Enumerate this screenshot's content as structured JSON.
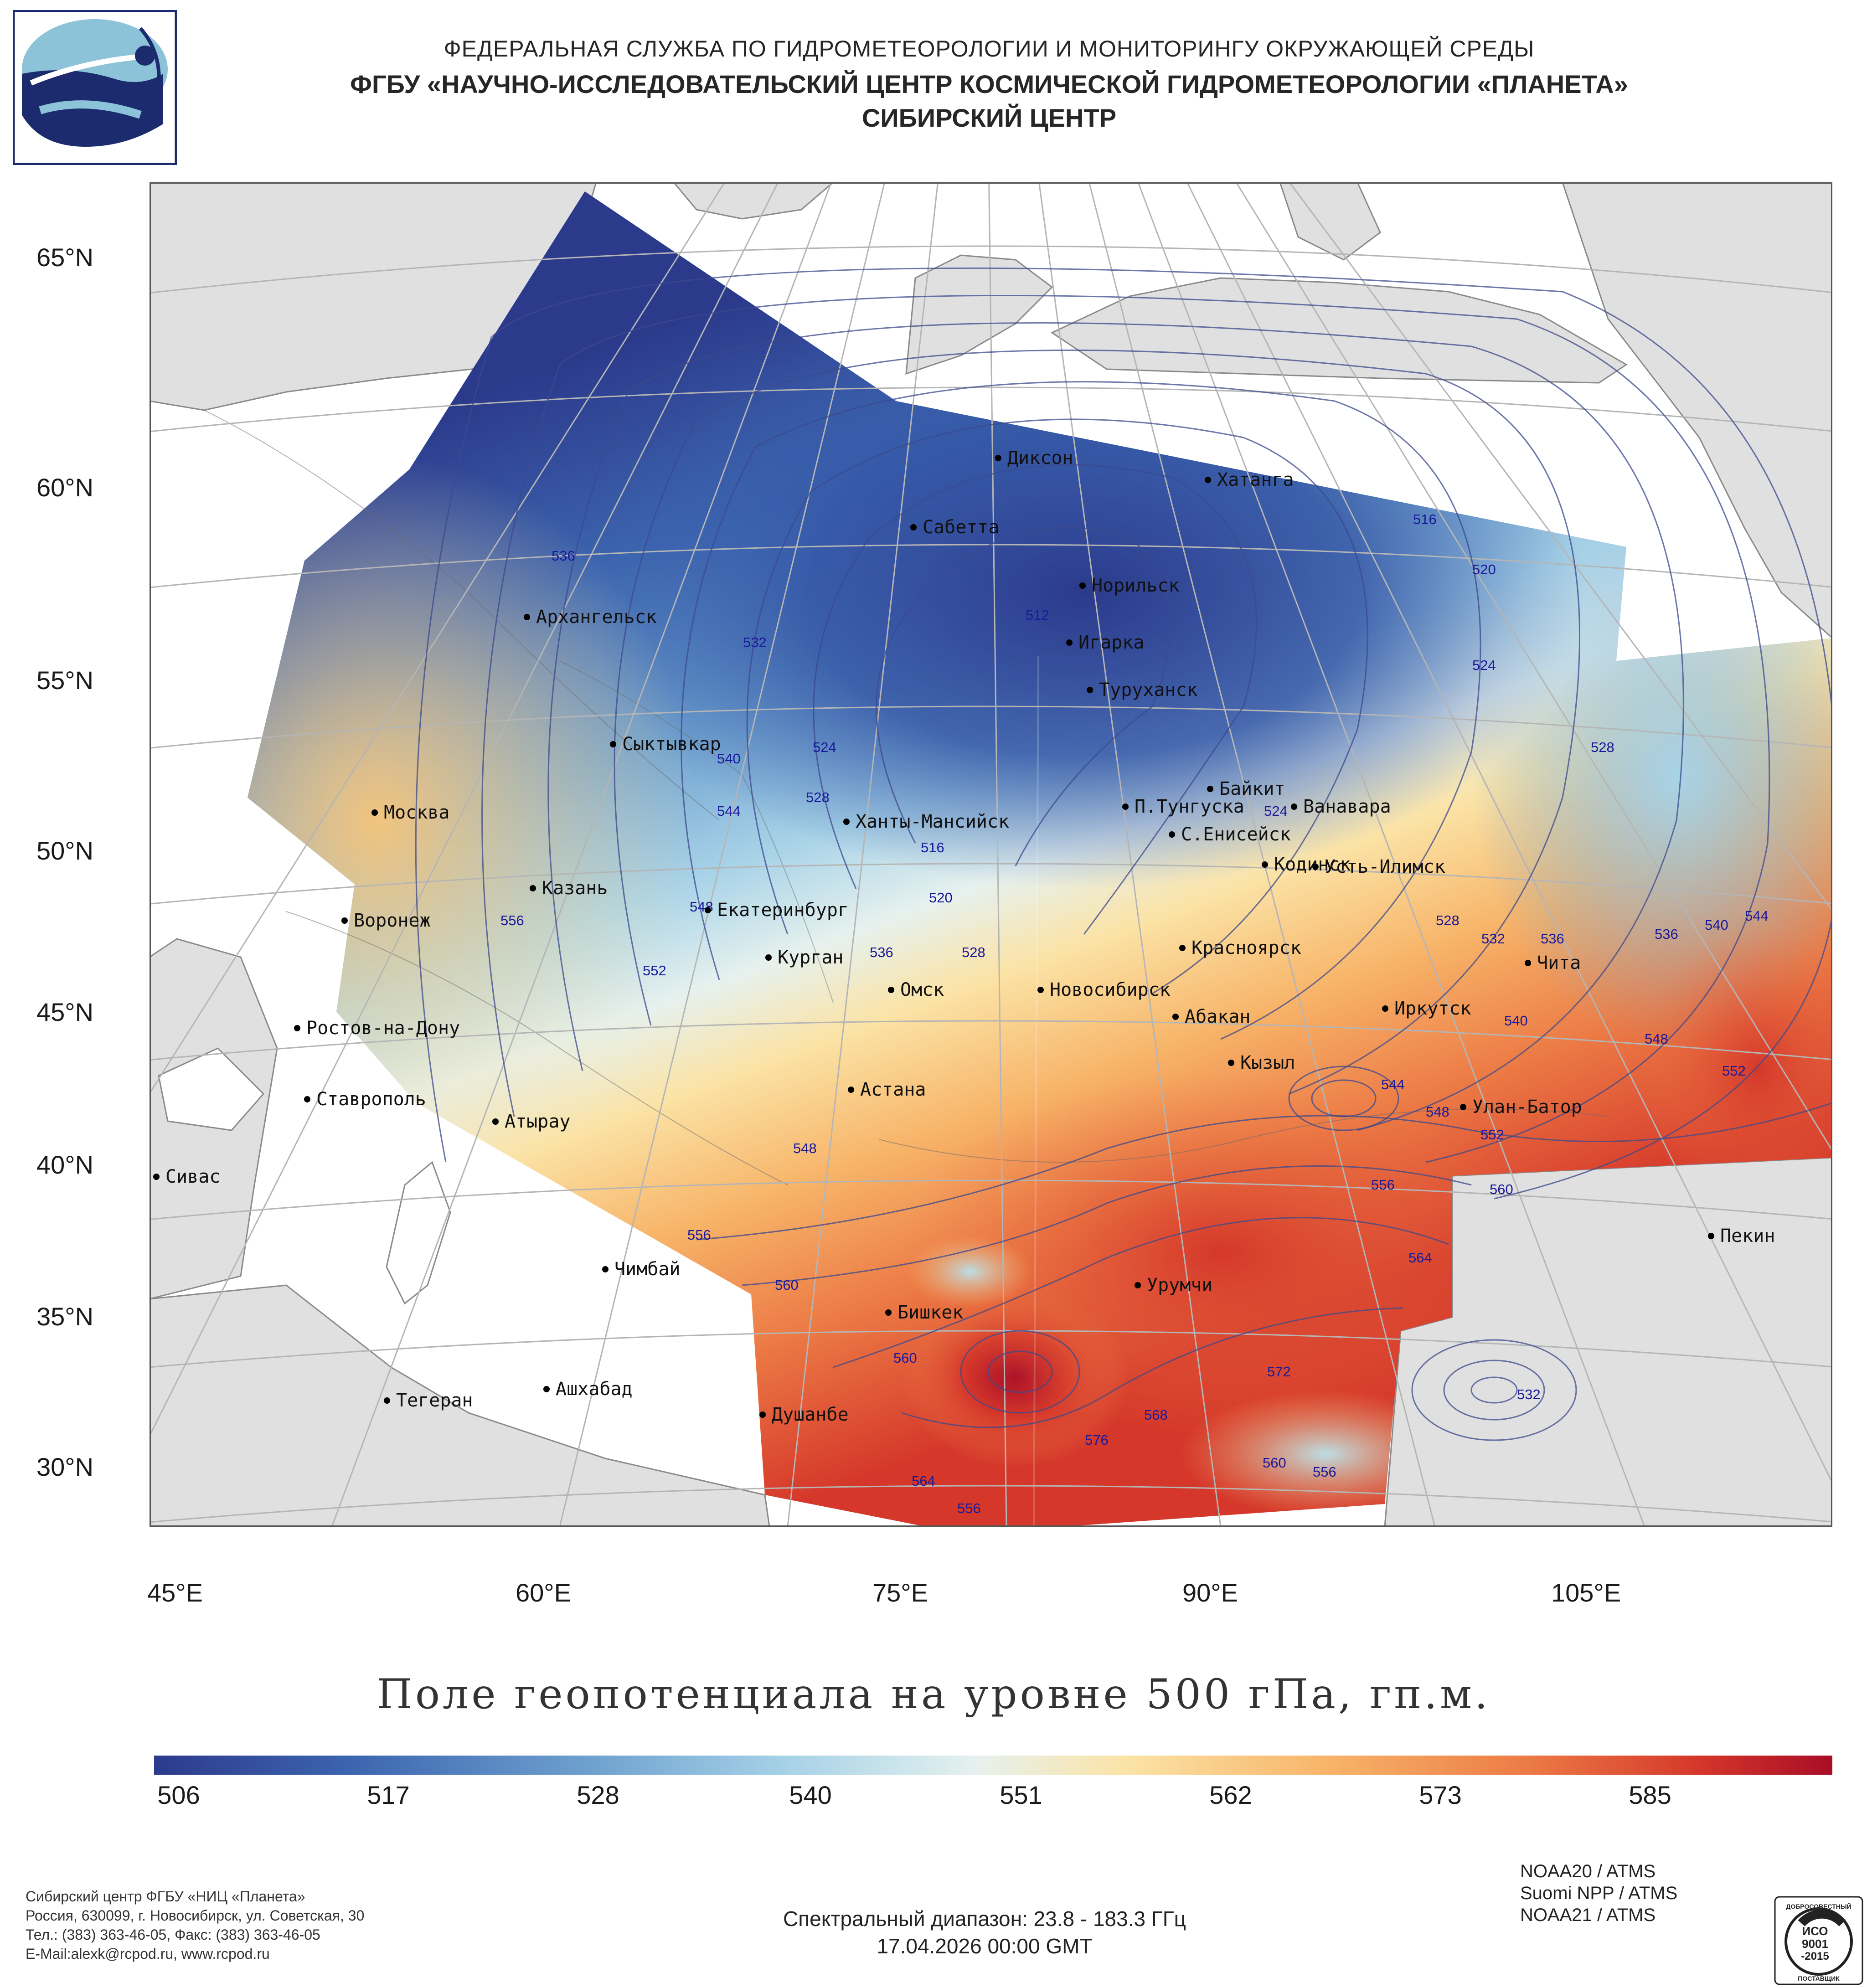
{
  "header": {
    "line1": "ФЕДЕРАЛЬНАЯ СЛУЖБА ПО ГИДРОМЕТЕОРОЛОГИИ И МОНИТОРИНГУ ОКРУЖАЮЩЕЙ СРЕДЫ",
    "line2": "ФГБУ «НАУЧНО-ИССЛЕДОВАТЕЛЬСКИЙ ЦЕНТР КОСМИЧЕСКОЙ ГИДРОМЕТЕОРОЛОГИИ «ПЛАНЕТА»",
    "line3": "СИБИРСКИЙ ЦЕНТР"
  },
  "map": {
    "lat_ticks": [
      "65°N",
      "60°N",
      "55°N",
      "50°N",
      "45°N",
      "40°N",
      "35°N",
      "30°N"
    ],
    "lon_ticks": [
      "45°E",
      "60°E",
      "75°E",
      "90°E",
      "105°E"
    ],
    "cities": [
      "Диксон",
      "Хатанга",
      "Сабетта",
      "Норильск",
      "Архангельск",
      "Игарка",
      "Туруханск",
      "Сыктывкар",
      "Байкит",
      "П.Тунгуска",
      "Ванавара",
      "Москва",
      "Ханты-Мансийск",
      "С.Енисейск",
      "Кодинск",
      "Усть-Илимск",
      "Казань",
      "Екатеринбург",
      "Воронеж",
      "Красноярск",
      "Курган",
      "Чита",
      "Омск",
      "Новосибирск",
      "Иркутск",
      "Ростов-на-Дону",
      "Абакан",
      "Кызыл",
      "Ставрополь",
      "Астана",
      "Улан-Батор",
      "Атырау",
      "Сивас",
      "Пекин",
      "Чимбай",
      "Урумчи",
      "Бишкек",
      "Ашхабад",
      "Тегеран",
      "Душанбе"
    ],
    "isolines": [
      "536",
      "532",
      "540",
      "544",
      "548",
      "552",
      "556",
      "524",
      "528",
      "516",
      "520",
      "528",
      "536",
      "512",
      "516",
      "520",
      "524",
      "528",
      "524",
      "528",
      "532",
      "536",
      "536",
      "540",
      "544",
      "540",
      "548",
      "552",
      "544",
      "548",
      "552",
      "556",
      "560",
      "564",
      "548",
      "556",
      "560",
      "560",
      "572",
      "568",
      "576",
      "564",
      "556",
      "560",
      "556",
      "532"
    ]
  },
  "chart_data": {
    "type": "heatmap",
    "title": "Поле геопотенциала на уровне 500 гПа, гп.м.",
    "variable": "geopotential height at 500 hPa",
    "units": "гп.м.",
    "colorbar_ticks": [
      506,
      517,
      528,
      540,
      551,
      562,
      573,
      585
    ],
    "colorbar_tick_labels": [
      "506",
      "517",
      "528",
      "540",
      "551",
      "562",
      "573",
      "585"
    ],
    "value_range": [
      506,
      595
    ],
    "colormap": [
      "#2c3a8c",
      "#3d66b0",
      "#6fa1cf",
      "#a8d3e8",
      "#e6f1ee",
      "#fbe3a6",
      "#f7b469",
      "#ec7a45",
      "#d5372a",
      "#a90d27"
    ],
    "lat_range_deg": [
      30,
      65
    ],
    "lon_range_deg": [
      45,
      110
    ],
    "contour_levels": [
      512,
      516,
      520,
      524,
      528,
      532,
      536,
      540,
      544,
      548,
      552,
      556,
      560,
      564,
      568,
      572,
      576
    ]
  },
  "footer": {
    "org": "Сибирский центр ФГБУ «НИЦ «Планета»",
    "address": "Россия, 630099, г. Новосибирск, ул. Советская, 30",
    "phone": "Тел.: (383) 363-46-05, Факс: (383) 363-46-05",
    "email": "E-Mail:alexk@rcpod.ru, www.rcpod.ru",
    "spectral": "Спектральный диапазон: 23.8 - 183.3 ГГц",
    "datetime": "17.04.2026 00:00 GMT",
    "satellites": [
      "NOAA20 / ATMS",
      "Suomi NPP / ATMS",
      "NOAA21 / ATMS"
    ],
    "cert": {
      "top": "ДОБРОСОВЕСТНЫЙ",
      "iso": "ИСО",
      "num": "9001",
      "year": "-2015",
      "bottom": "ПОСТАВЩИК"
    }
  }
}
